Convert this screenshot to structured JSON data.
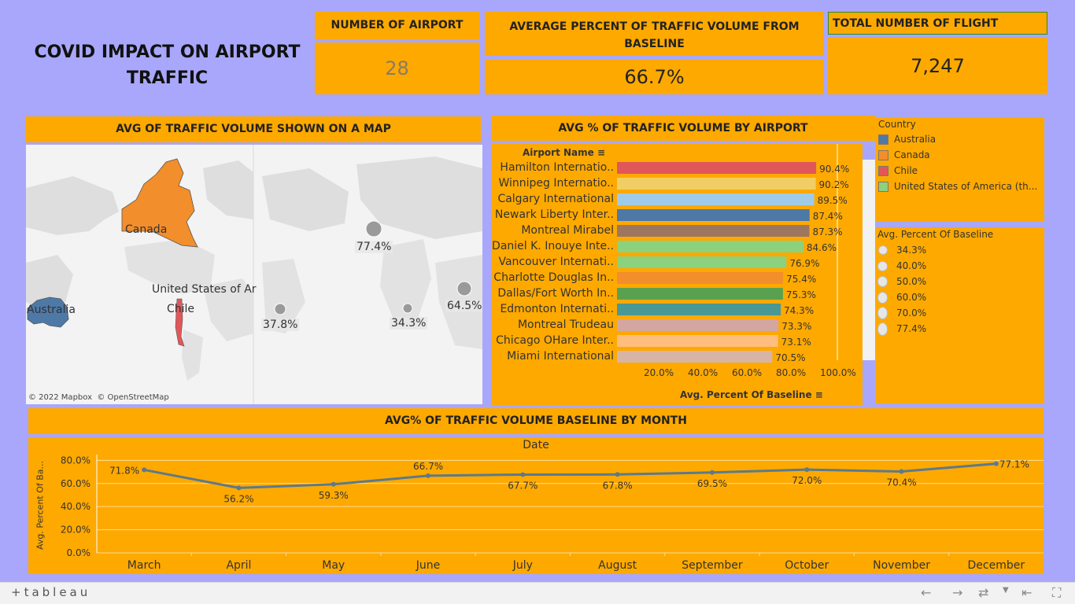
{
  "title": "COVID IMPACT ON AIRPORT TRAFFIC",
  "kpis": {
    "airports": {
      "label": "NUMBER OF AIRPORT",
      "value": "28"
    },
    "avg_pct": {
      "label": "AVERAGE PERCENT OF TRAFFIC VOLUME FROM BASELINE",
      "value": "66.7%"
    },
    "flights": {
      "label": "TOTAL NUMBER OF FLIGHT",
      "value": "7,247"
    }
  },
  "map": {
    "header": "AVG OF TRAFFIC VOLUME SHOWN ON A MAP",
    "labels": {
      "canada": "Canada",
      "usa": "United States of Ar",
      "chile": "Chile",
      "australia": "Australia"
    },
    "bubbles": [
      "77.4%",
      "64.5%",
      "37.8%",
      "34.3%"
    ],
    "attribution": "© 2022 Mapbox  © OpenStreetMap",
    "colors": {
      "canada": "#f28e2b",
      "australia": "#4e79a7",
      "chile": "#e15759"
    }
  },
  "airport_chart_header": "AVG % OF TRAFFIC VOLUME BY AIRPORT",
  "country_legend": {
    "title": "Country",
    "items": [
      {
        "label": "Australia",
        "color": "#4e79a7"
      },
      {
        "label": "Canada",
        "color": "#f28e2b"
      },
      {
        "label": "Chile",
        "color": "#e15759"
      },
      {
        "label": "United States of America (th...",
        "color": "#8cd17d"
      }
    ]
  },
  "size_legend": {
    "title": "Avg. Percent Of Baseline",
    "items": [
      "34.3%",
      "40.0%",
      "50.0%",
      "60.0%",
      "70.0%",
      "77.4%"
    ]
  },
  "month_chart_header": "AVG% OF TRAFFIC VOLUME BASELINE BY MONTH",
  "chart_data": [
    {
      "type": "bar",
      "orientation": "horizontal",
      "row_header": "Airport Name",
      "xlabel": "Avg. Percent Of Baseline",
      "xlim": [
        0,
        100
      ],
      "ticks": [
        "20.0%",
        "40.0%",
        "60.0%",
        "80.0%",
        "100.0%"
      ],
      "categories": [
        "Hamilton Internatio..",
        "Winnipeg Internatio..",
        "Calgary International",
        "Newark Liberty Inter..",
        "Montreal Mirabel",
        "Daniel K. Inouye Inte..",
        "Vancouver Internati..",
        "Charlotte Douglas In..",
        "Dallas/Fort Worth In..",
        "Edmonton Internati..",
        "Montreal Trudeau",
        "Chicago OHare Inter..",
        "Miami International"
      ],
      "values": [
        90.4,
        90.2,
        89.5,
        87.4,
        87.3,
        84.6,
        76.9,
        75.4,
        75.3,
        74.3,
        73.3,
        73.1,
        70.5
      ],
      "labels": [
        "90.4%",
        "90.2%",
        "89.5%",
        "87.4%",
        "87.3%",
        "84.6%",
        "76.9%",
        "75.4%",
        "75.3%",
        "74.3%",
        "73.3%",
        "73.1%",
        "70.5%"
      ],
      "colors": [
        "#e15759",
        "#f1ce63",
        "#a0cbe8",
        "#4e79a7",
        "#9d7660",
        "#8cd17d",
        "#8cd17d",
        "#f28e2b",
        "#59a14f",
        "#499894",
        "#d4a6a0",
        "#ffbe7d",
        "#d7b5a6"
      ]
    },
    {
      "type": "line",
      "title": "Date",
      "ylabel": "Avg. Percent Of Ba...",
      "ylim": [
        0,
        85
      ],
      "yticks": [
        "0.0%",
        "20.0%",
        "40.0%",
        "60.0%",
        "80.0%"
      ],
      "x": [
        "March",
        "April",
        "May",
        "June",
        "July",
        "August",
        "September",
        "October",
        "November",
        "December"
      ],
      "values": [
        71.8,
        56.2,
        59.3,
        66.7,
        67.7,
        67.8,
        69.5,
        72.0,
        70.4,
        77.1
      ],
      "labels": [
        "71.8%",
        "56.2%",
        "59.3%",
        "66.7%",
        "67.7%",
        "67.8%",
        "69.5%",
        "72.0%",
        "70.4%",
        "77.1%"
      ],
      "color": "#5b7a8c"
    }
  ],
  "footer": {
    "logo": "+tableau"
  }
}
